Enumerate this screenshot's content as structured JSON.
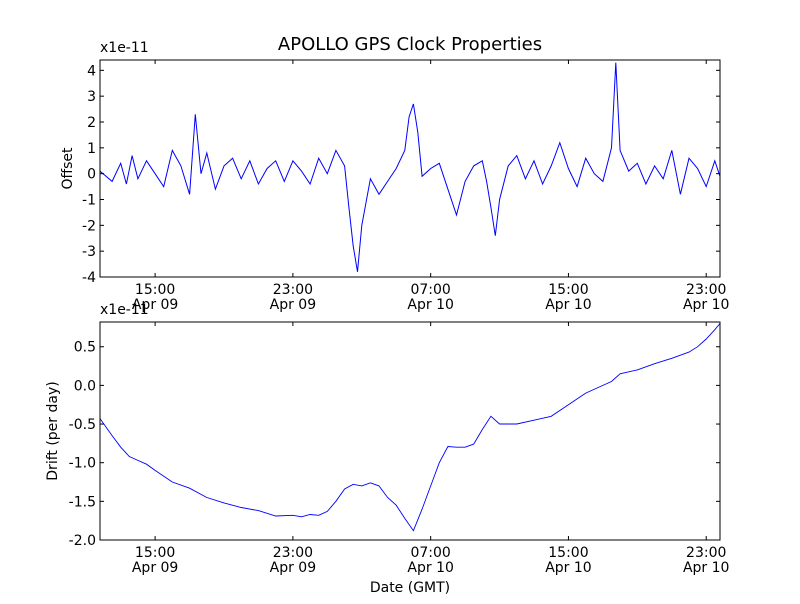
{
  "figure": {
    "title": "APOLLO GPS Clock Properties"
  },
  "chart_data": [
    {
      "type": "line",
      "title": "APOLLO GPS Clock Properties",
      "ylabel": "Offset",
      "xlabel": "",
      "y_multiplier": "x1e-11",
      "xlim": [
        "2009-04-09 11:48",
        "2009-04-10 23:48"
      ],
      "ylim": [
        -4,
        4.4
      ],
      "yticks": [
        "-4",
        "-3",
        "-2",
        "-1",
        "0",
        "1",
        "2",
        "3",
        "4"
      ],
      "xticks": [
        {
          "at": "2009-04-09 15:00",
          "time": "15:00",
          "date": "Apr 09"
        },
        {
          "at": "2009-04-09 23:00",
          "time": "23:00",
          "date": "Apr 09"
        },
        {
          "at": "2009-04-10 07:00",
          "time": "07:00",
          "date": "Apr 10"
        },
        {
          "at": "2009-04-10 15:00",
          "time": "15:00",
          "date": "Apr 10"
        },
        {
          "at": "2009-04-10 23:00",
          "time": "23:00",
          "date": "Apr 10"
        }
      ],
      "color": "#0000ff",
      "series": [
        {
          "x": [
            "2009-04-09 11:48",
            "2009-04-09 12:30",
            "2009-04-09 13:00",
            "2009-04-09 13:20",
            "2009-04-09 13:40",
            "2009-04-09 14:00",
            "2009-04-09 14:30",
            "2009-04-09 15:00",
            "2009-04-09 15:30",
            "2009-04-09 16:00",
            "2009-04-09 16:30",
            "2009-04-09 17:00",
            "2009-04-09 17:20",
            "2009-04-09 17:40",
            "2009-04-09 18:00",
            "2009-04-09 18:30",
            "2009-04-09 19:00",
            "2009-04-09 19:30",
            "2009-04-09 20:00",
            "2009-04-09 20:30",
            "2009-04-09 21:00",
            "2009-04-09 21:30",
            "2009-04-09 22:00",
            "2009-04-09 22:30",
            "2009-04-09 23:00",
            "2009-04-09 23:30",
            "2009-04-10 00:00",
            "2009-04-10 00:30",
            "2009-04-10 01:00",
            "2009-04-10 01:30",
            "2009-04-10 02:00",
            "2009-04-10 02:15",
            "2009-04-10 02:30",
            "2009-04-10 02:45",
            "2009-04-10 03:00",
            "2009-04-10 03:30",
            "2009-04-10 04:00",
            "2009-04-10 04:30",
            "2009-04-10 05:00",
            "2009-04-10 05:30",
            "2009-04-10 05:45",
            "2009-04-10 06:00",
            "2009-04-10 06:15",
            "2009-04-10 06:30",
            "2009-04-10 07:00",
            "2009-04-10 07:30",
            "2009-04-10 08:00",
            "2009-04-10 08:30",
            "2009-04-10 09:00",
            "2009-04-10 09:30",
            "2009-04-10 10:00",
            "2009-04-10 10:15",
            "2009-04-10 10:30",
            "2009-04-10 10:45",
            "2009-04-10 11:00",
            "2009-04-10 11:30",
            "2009-04-10 12:00",
            "2009-04-10 12:30",
            "2009-04-10 13:00",
            "2009-04-10 13:30",
            "2009-04-10 14:00",
            "2009-04-10 14:30",
            "2009-04-10 15:00",
            "2009-04-10 15:30",
            "2009-04-10 16:00",
            "2009-04-10 16:30",
            "2009-04-10 17:00",
            "2009-04-10 17:30",
            "2009-04-10 17:45",
            "2009-04-10 18:00",
            "2009-04-10 18:30",
            "2009-04-10 19:00",
            "2009-04-10 19:30",
            "2009-04-10 20:00",
            "2009-04-10 20:30",
            "2009-04-10 21:00",
            "2009-04-10 21:30",
            "2009-04-10 22:00",
            "2009-04-10 22:30",
            "2009-04-10 23:00",
            "2009-04-10 23:30",
            "2009-04-10 23:48"
          ],
          "values": [
            0.1,
            -0.3,
            0.4,
            -0.4,
            0.7,
            -0.2,
            0.5,
            0.0,
            -0.5,
            0.9,
            0.3,
            -0.8,
            2.3,
            0.0,
            0.8,
            -0.6,
            0.3,
            0.6,
            -0.2,
            0.5,
            -0.4,
            0.2,
            0.5,
            -0.3,
            0.5,
            0.1,
            -0.4,
            0.6,
            0.0,
            0.9,
            0.3,
            -1.3,
            -2.8,
            -3.8,
            -2.0,
            -0.2,
            -0.8,
            -0.3,
            0.2,
            0.9,
            2.2,
            2.7,
            1.6,
            -0.1,
            0.2,
            0.4,
            -0.6,
            -1.6,
            -0.3,
            0.3,
            0.5,
            -0.3,
            -1.3,
            -2.4,
            -1.0,
            0.3,
            0.7,
            -0.2,
            0.5,
            -0.4,
            0.3,
            1.2,
            0.2,
            -0.5,
            0.6,
            0.0,
            -0.3,
            1.0,
            4.3,
            0.9,
            0.1,
            0.4,
            -0.4,
            0.3,
            -0.2,
            0.9,
            -0.8,
            0.6,
            0.2,
            -0.5,
            0.5,
            -0.1
          ]
        }
      ]
    },
    {
      "type": "line",
      "ylabel": "Drift (per day)",
      "xlabel": "Date (GMT)",
      "y_multiplier": "x1e-11",
      "xlim": [
        "2009-04-09 11:48",
        "2009-04-10 23:48"
      ],
      "ylim": [
        -2.0,
        0.82
      ],
      "yticks": [
        "-2.0",
        "-1.5",
        "-1.0",
        "-0.5",
        "0.0",
        "0.5"
      ],
      "xticks": [
        {
          "at": "2009-04-09 15:00",
          "time": "15:00",
          "date": "Apr 09"
        },
        {
          "at": "2009-04-09 23:00",
          "time": "23:00",
          "date": "Apr 09"
        },
        {
          "at": "2009-04-10 07:00",
          "time": "07:00",
          "date": "Apr 10"
        },
        {
          "at": "2009-04-10 15:00",
          "time": "15:00",
          "date": "Apr 10"
        },
        {
          "at": "2009-04-10 23:00",
          "time": "23:00",
          "date": "Apr 10"
        }
      ],
      "color": "#0000ff",
      "series": [
        {
          "x": [
            "2009-04-09 11:48",
            "2009-04-09 12:30",
            "2009-04-09 13:00",
            "2009-04-09 13:30",
            "2009-04-09 14:00",
            "2009-04-09 14:30",
            "2009-04-09 15:00",
            "2009-04-09 16:00",
            "2009-04-09 17:00",
            "2009-04-09 18:00",
            "2009-04-09 19:00",
            "2009-04-09 20:00",
            "2009-04-09 21:00",
            "2009-04-09 22:00",
            "2009-04-09 23:00",
            "2009-04-09 23:30",
            "2009-04-10 00:00",
            "2009-04-10 00:30",
            "2009-04-10 01:00",
            "2009-04-10 01:30",
            "2009-04-10 02:00",
            "2009-04-10 02:30",
            "2009-04-10 03:00",
            "2009-04-10 03:30",
            "2009-04-10 04:00",
            "2009-04-10 04:30",
            "2009-04-10 05:00",
            "2009-04-10 05:30",
            "2009-04-10 06:00",
            "2009-04-10 06:30",
            "2009-04-10 07:00",
            "2009-04-10 07:30",
            "2009-04-10 08:00",
            "2009-04-10 08:30",
            "2009-04-10 09:00",
            "2009-04-10 09:30",
            "2009-04-10 10:00",
            "2009-04-10 10:30",
            "2009-04-10 11:00",
            "2009-04-10 12:00",
            "2009-04-10 13:00",
            "2009-04-10 14:00",
            "2009-04-10 15:00",
            "2009-04-10 16:00",
            "2009-04-10 17:00",
            "2009-04-10 17:30",
            "2009-04-10 18:00",
            "2009-04-10 19:00",
            "2009-04-10 20:00",
            "2009-04-10 21:00",
            "2009-04-10 22:00",
            "2009-04-10 22:30",
            "2009-04-10 23:00",
            "2009-04-10 23:30",
            "2009-04-10 23:48"
          ],
          "values": [
            -0.43,
            -0.65,
            -0.8,
            -0.92,
            -0.97,
            -1.02,
            -1.1,
            -1.25,
            -1.33,
            -1.45,
            -1.52,
            -1.58,
            -1.62,
            -1.69,
            -1.68,
            -1.7,
            -1.67,
            -1.68,
            -1.63,
            -1.5,
            -1.34,
            -1.28,
            -1.3,
            -1.26,
            -1.3,
            -1.45,
            -1.55,
            -1.72,
            -1.88,
            -1.6,
            -1.3,
            -1.0,
            -0.79,
            -0.8,
            -0.8,
            -0.76,
            -0.57,
            -0.4,
            -0.5,
            -0.5,
            -0.45,
            -0.4,
            -0.25,
            -0.1,
            0.0,
            0.05,
            0.15,
            0.2,
            0.28,
            0.35,
            0.43,
            0.5,
            0.6,
            0.72,
            0.8
          ]
        }
      ]
    }
  ]
}
